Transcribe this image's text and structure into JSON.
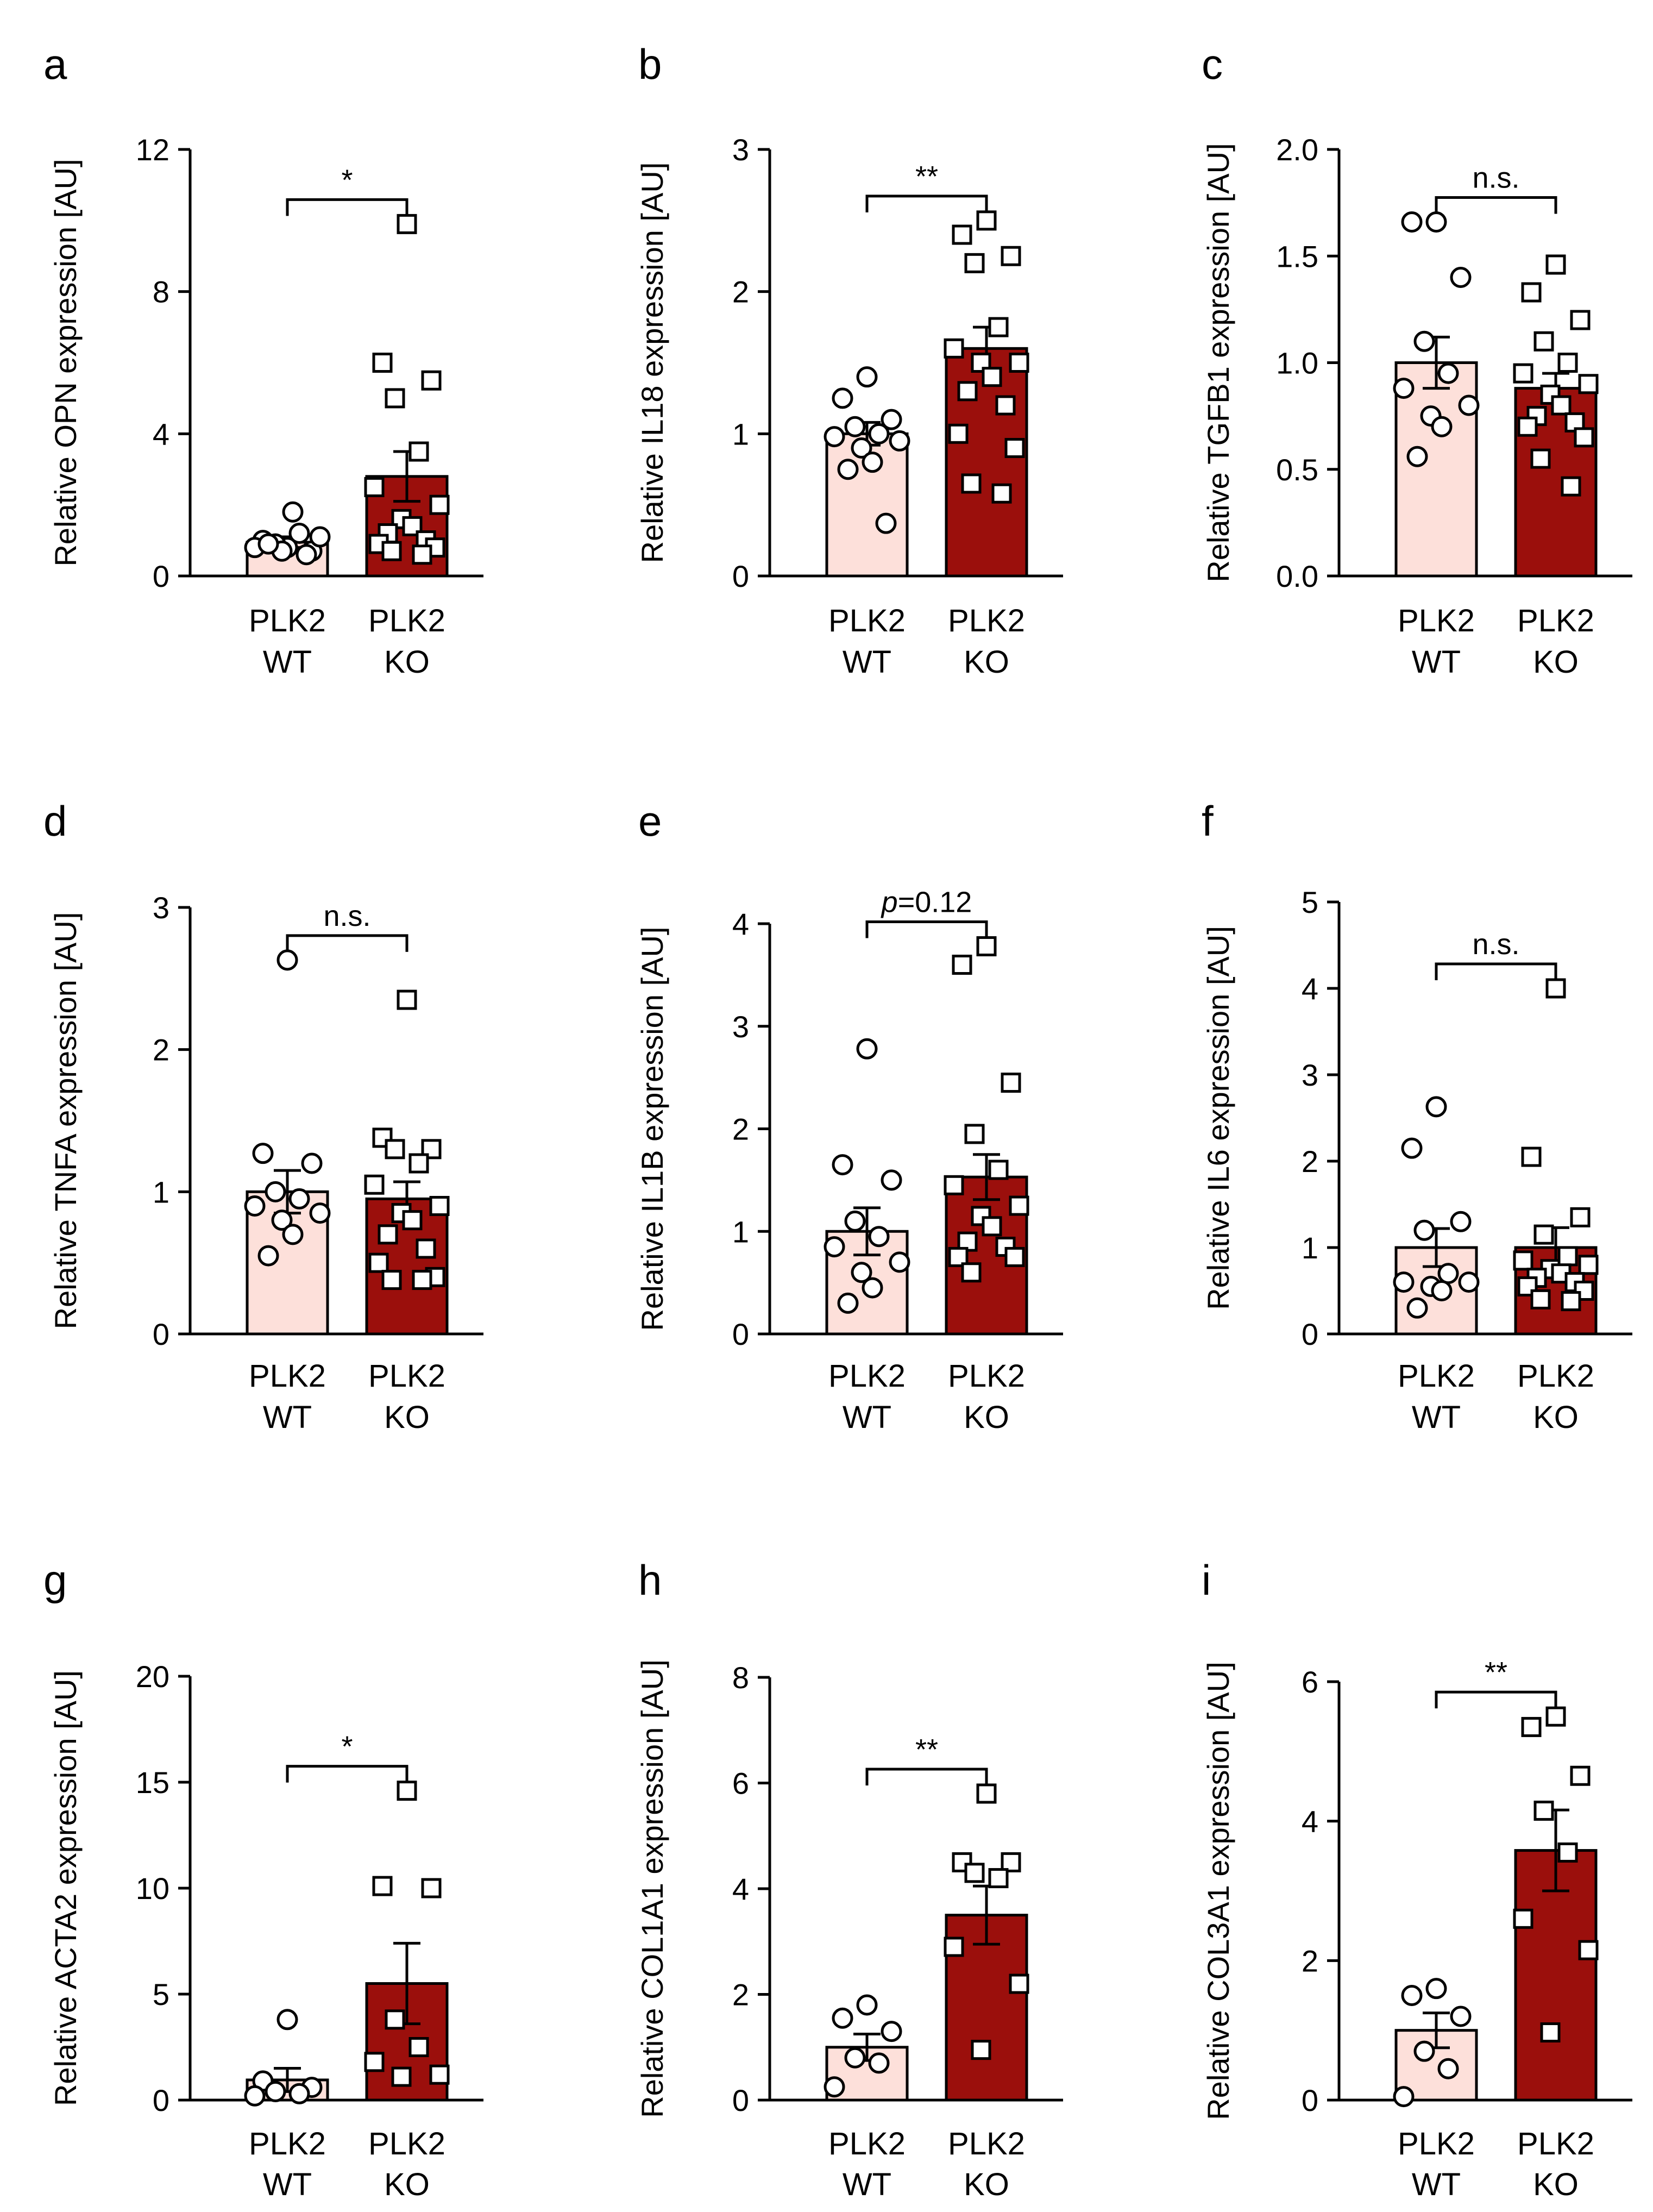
{
  "colors": {
    "wt_fill": "#fde0da",
    "ko_fill": "#9b0f0c",
    "stroke": "#000000",
    "point_fill": "#ffffff"
  },
  "group_labels": [
    [
      "PLK2",
      "WT"
    ],
    [
      "PLK2",
      "KO"
    ]
  ],
  "chart_data": [
    {
      "panel": "a",
      "type": "bar",
      "ylabel": "Relative OPN expression [AU]",
      "ylim": [
        0,
        12
      ],
      "yticks": [
        "0",
        "4",
        "8",
        "12"
      ],
      "yticks_values": [
        0,
        4,
        8,
        12
      ],
      "significance": "*",
      "series": [
        {
          "name": "PLK2 WT",
          "mean": 0.95,
          "sem": 0.15,
          "marker": "circle",
          "points": [
            0.8,
            1.0,
            0.7,
            0.9,
            1.2,
            0.8,
            1.1,
            0.7,
            1.8,
            0.9,
            0.6
          ]
        },
        {
          "name": "PLK2 KO",
          "mean": 2.8,
          "sem": 0.7,
          "marker": "square",
          "points": [
            9.9,
            6.0,
            5.5,
            5.0,
            3.5,
            2.5,
            2.0,
            1.6,
            1.4,
            1.2,
            1.0,
            0.9,
            0.8,
            0.7,
            0.6
          ]
        }
      ]
    },
    {
      "panel": "b",
      "type": "bar",
      "ylabel": "Relative IL18 expression [AU]",
      "ylim": [
        0,
        3
      ],
      "yticks": [
        "0",
        "1",
        "2",
        "3"
      ],
      "yticks_values": [
        0,
        1,
        2,
        3
      ],
      "significance": "**",
      "series": [
        {
          "name": "PLK2 WT",
          "mean": 1.0,
          "sem": 0.08,
          "marker": "circle",
          "points": [
            1.4,
            1.25,
            1.1,
            1.05,
            1.0,
            0.98,
            0.95,
            0.9,
            0.8,
            0.75,
            0.37
          ]
        },
        {
          "name": "PLK2 KO",
          "mean": 1.6,
          "sem": 0.15,
          "marker": "square",
          "points": [
            2.5,
            2.4,
            2.25,
            2.2,
            1.75,
            1.6,
            1.5,
            1.5,
            1.4,
            1.3,
            1.2,
            1.0,
            0.9,
            0.65,
            0.58
          ]
        }
      ]
    },
    {
      "panel": "c",
      "type": "bar",
      "ylabel": "Relative TGFB1 expression [AU]",
      "ylim": [
        0,
        2
      ],
      "yticks": [
        "0.0",
        "0.5",
        "1.0",
        "1.5",
        "2.0"
      ],
      "yticks_values": [
        0,
        0.5,
        1.0,
        1.5,
        2.0
      ],
      "significance": "n.s.",
      "series": [
        {
          "name": "PLK2 WT",
          "mean": 1.0,
          "sem": 0.12,
          "marker": "circle",
          "points": [
            1.66,
            1.66,
            1.4,
            1.1,
            0.95,
            0.88,
            0.8,
            0.75,
            0.7,
            0.56
          ]
        },
        {
          "name": "PLK2 KO",
          "mean": 0.88,
          "sem": 0.07,
          "marker": "square",
          "points": [
            1.46,
            1.33,
            1.2,
            1.1,
            1.0,
            0.95,
            0.9,
            0.85,
            0.8,
            0.75,
            0.72,
            0.7,
            0.65,
            0.55,
            0.42
          ]
        }
      ]
    },
    {
      "panel": "d",
      "type": "bar",
      "ylabel": "Relative TNFA expression [AU]",
      "ylim": [
        0,
        3
      ],
      "yticks": [
        "0",
        "1",
        "2",
        "3"
      ],
      "yticks_values": [
        0,
        1,
        2,
        3
      ],
      "significance": "n.s.",
      "series": [
        {
          "name": "PLK2 WT",
          "mean": 1.0,
          "sem": 0.15,
          "marker": "circle",
          "points": [
            2.63,
            1.27,
            1.2,
            1.0,
            0.95,
            0.9,
            0.85,
            0.8,
            0.7,
            0.55
          ]
        },
        {
          "name": "PLK2 KO",
          "mean": 0.95,
          "sem": 0.12,
          "marker": "square",
          "points": [
            2.35,
            1.38,
            1.3,
            1.3,
            1.2,
            1.05,
            0.9,
            0.85,
            0.8,
            0.7,
            0.6,
            0.5,
            0.4,
            0.38,
            0.38
          ]
        }
      ]
    },
    {
      "panel": "e",
      "type": "bar",
      "ylabel": "Relative IL1B expression [AU]",
      "ylim": [
        0,
        4
      ],
      "yticks": [
        "0",
        "1",
        "2",
        "3",
        "4"
      ],
      "yticks_values": [
        0,
        1,
        2,
        3,
        4
      ],
      "significance_italic": "p",
      "significance": "=0.12",
      "series": [
        {
          "name": "PLK2 WT",
          "mean": 1.0,
          "sem": 0.23,
          "marker": "circle",
          "points": [
            2.78,
            1.65,
            1.5,
            1.1,
            0.95,
            0.85,
            0.7,
            0.6,
            0.45,
            0.3
          ]
        },
        {
          "name": "PLK2 KO",
          "mean": 1.53,
          "sem": 0.22,
          "marker": "square",
          "points": [
            3.78,
            3.6,
            2.45,
            1.95,
            1.6,
            1.45,
            1.25,
            1.15,
            1.05,
            0.9,
            0.85,
            0.75,
            0.75,
            0.6
          ]
        }
      ]
    },
    {
      "panel": "f",
      "type": "bar",
      "ylabel": "Relative IL6 expression [AU]",
      "ylim": [
        0,
        5
      ],
      "yticks": [
        "0",
        "1",
        "2",
        "3",
        "4",
        "5"
      ],
      "yticks_values": [
        0,
        1,
        2,
        3,
        4,
        5
      ],
      "significance": "n.s.",
      "series": [
        {
          "name": "PLK2 WT",
          "mean": 1.0,
          "sem": 0.22,
          "marker": "circle",
          "points": [
            2.63,
            2.15,
            1.3,
            1.2,
            0.7,
            0.6,
            0.6,
            0.55,
            0.5,
            0.3
          ]
        },
        {
          "name": "PLK2 KO",
          "mean": 1.0,
          "sem": 0.23,
          "marker": "square",
          "points": [
            4.0,
            2.05,
            1.35,
            1.15,
            0.9,
            0.85,
            0.8,
            0.75,
            0.7,
            0.65,
            0.6,
            0.55,
            0.5,
            0.4,
            0.38
          ]
        }
      ]
    },
    {
      "panel": "g",
      "type": "bar",
      "ylabel": "Relative ACTA2 expression [AU]",
      "ylim": [
        0,
        20
      ],
      "yticks": [
        "0",
        "5",
        "10",
        "15",
        "20"
      ],
      "yticks_values": [
        0,
        5,
        10,
        15,
        20
      ],
      "significance": "*",
      "series": [
        {
          "name": "PLK2 WT",
          "mean": 0.95,
          "sem": 0.55,
          "marker": "circle",
          "points": [
            3.8,
            0.9,
            0.6,
            0.4,
            0.3,
            0.2
          ]
        },
        {
          "name": "PLK2 KO",
          "mean": 5.5,
          "sem": 1.9,
          "marker": "square",
          "points": [
            14.6,
            10.1,
            10.0,
            3.8,
            2.5,
            1.8,
            1.2,
            1.1
          ]
        }
      ]
    },
    {
      "panel": "h",
      "type": "bar",
      "ylabel": "Relative COL1A1 expression [AU]",
      "ylim": [
        0,
        8
      ],
      "yticks": [
        "0",
        "2",
        "4",
        "6",
        "8"
      ],
      "yticks_values": [
        0,
        2,
        4,
        6,
        8
      ],
      "significance": "**",
      "series": [
        {
          "name": "PLK2 WT",
          "mean": 1.0,
          "sem": 0.25,
          "marker": "circle",
          "points": [
            1.8,
            1.55,
            1.3,
            0.8,
            0.7,
            0.25
          ]
        },
        {
          "name": "PLK2 KO",
          "mean": 3.5,
          "sem": 0.55,
          "marker": "square",
          "points": [
            5.8,
            4.5,
            4.5,
            4.3,
            4.2,
            2.9,
            2.2,
            0.95
          ]
        }
      ]
    },
    {
      "panel": "i",
      "type": "bar",
      "ylabel": "Relative COL3A1 expression [AU]",
      "ylim": [
        0,
        6
      ],
      "yticks": [
        "0",
        "2",
        "4",
        "6"
      ],
      "yticks_values": [
        0,
        2,
        4,
        6
      ],
      "significance": "**",
      "series": [
        {
          "name": "PLK2 WT",
          "mean": 1.0,
          "sem": 0.25,
          "marker": "circle",
          "points": [
            1.6,
            1.5,
            1.2,
            0.7,
            0.45,
            0.05
          ]
        },
        {
          "name": "PLK2 KO",
          "mean": 3.58,
          "sem": 0.58,
          "marker": "square",
          "points": [
            5.5,
            5.35,
            4.65,
            4.15,
            3.55,
            2.6,
            2.15,
            0.97
          ]
        }
      ]
    }
  ]
}
